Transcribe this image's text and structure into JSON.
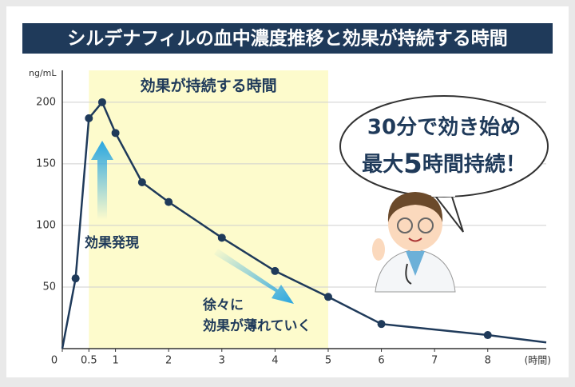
{
  "chart_data": {
    "type": "line",
    "title": "シルデナフィルの血中濃度推移と効果が持続する時間",
    "y_label": "ng/mL",
    "x_label": "(時間)",
    "x": [
      0,
      0.25,
      0.5,
      0.75,
      1,
      1.5,
      2,
      3,
      4,
      5,
      6,
      8,
      9.1
    ],
    "series": [
      {
        "color": "#1f3a5a",
        "values": [
          0,
          57,
          187,
          200,
          175,
          135,
          119,
          90,
          63,
          42,
          20,
          11,
          5
        ]
      }
    ],
    "xlim": [
      0,
      9.1
    ],
    "ylim": [
      0,
      220
    ],
    "xticks": [
      0,
      0.5,
      1,
      2,
      3,
      4,
      5,
      6,
      7,
      8
    ],
    "yticks": [
      50,
      100,
      150,
      200
    ],
    "grid": true,
    "effect_band": {
      "label": "効果が持続する時間",
      "range": [
        0.5,
        5
      ],
      "color": "#fdfbcc"
    },
    "annotations": {
      "onset": "効果発現",
      "fade": [
        "徐々に",
        "効果が薄れていく"
      ]
    },
    "callout": {
      "line1": "30分で効き始め",
      "line2": [
        "最大",
        "5",
        "時間持続！"
      ]
    }
  }
}
